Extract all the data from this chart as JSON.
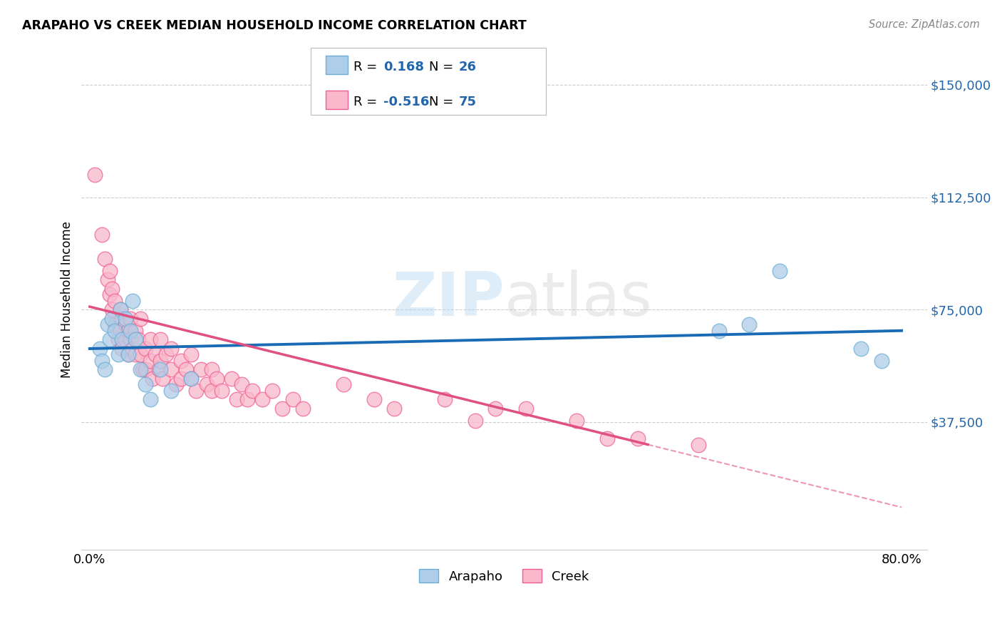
{
  "title": "ARAPAHO VS CREEK MEDIAN HOUSEHOLD INCOME CORRELATION CHART",
  "source": "Source: ZipAtlas.com",
  "ylabel": "Median Household Income",
  "xlim": [
    0.0,
    0.8
  ],
  "ylim": [
    0,
    160000
  ],
  "arapaho_line_color": "#1a6bb5",
  "creek_line_color": "#e05080",
  "arapaho_scatter_face": "#aecde8",
  "arapaho_scatter_edge": "#6baed6",
  "creek_scatter_face": "#f9b8cc",
  "creek_scatter_edge": "#f06090",
  "watermark_color": "#cce4f5",
  "ytick_vals": [
    37500,
    75000,
    112500,
    150000
  ],
  "ytick_labels": [
    "$37,500",
    "$75,000",
    "$112,500",
    "$150,000"
  ],
  "arapaho_points": [
    [
      0.01,
      62000
    ],
    [
      0.012,
      58000
    ],
    [
      0.015,
      55000
    ],
    [
      0.018,
      70000
    ],
    [
      0.02,
      65000
    ],
    [
      0.022,
      72000
    ],
    [
      0.025,
      68000
    ],
    [
      0.028,
      60000
    ],
    [
      0.03,
      75000
    ],
    [
      0.032,
      65000
    ],
    [
      0.035,
      72000
    ],
    [
      0.038,
      60000
    ],
    [
      0.04,
      68000
    ],
    [
      0.042,
      78000
    ],
    [
      0.045,
      65000
    ],
    [
      0.05,
      55000
    ],
    [
      0.055,
      50000
    ],
    [
      0.06,
      45000
    ],
    [
      0.07,
      55000
    ],
    [
      0.08,
      48000
    ],
    [
      0.1,
      52000
    ],
    [
      0.62,
      68000
    ],
    [
      0.65,
      70000
    ],
    [
      0.68,
      88000
    ],
    [
      0.76,
      62000
    ],
    [
      0.78,
      58000
    ]
  ],
  "creek_points": [
    [
      0.005,
      120000
    ],
    [
      0.012,
      100000
    ],
    [
      0.015,
      92000
    ],
    [
      0.018,
      85000
    ],
    [
      0.02,
      88000
    ],
    [
      0.02,
      80000
    ],
    [
      0.022,
      82000
    ],
    [
      0.022,
      75000
    ],
    [
      0.025,
      78000
    ],
    [
      0.025,
      70000
    ],
    [
      0.028,
      65000
    ],
    [
      0.03,
      75000
    ],
    [
      0.03,
      68000
    ],
    [
      0.032,
      72000
    ],
    [
      0.032,
      62000
    ],
    [
      0.035,
      70000
    ],
    [
      0.035,
      65000
    ],
    [
      0.038,
      68000
    ],
    [
      0.038,
      60000
    ],
    [
      0.04,
      72000
    ],
    [
      0.04,
      65000
    ],
    [
      0.042,
      62000
    ],
    [
      0.045,
      68000
    ],
    [
      0.045,
      60000
    ],
    [
      0.048,
      65000
    ],
    [
      0.05,
      72000
    ],
    [
      0.05,
      60000
    ],
    [
      0.052,
      55000
    ],
    [
      0.055,
      62000
    ],
    [
      0.055,
      55000
    ],
    [
      0.06,
      65000
    ],
    [
      0.06,
      58000
    ],
    [
      0.062,
      52000
    ],
    [
      0.065,
      60000
    ],
    [
      0.068,
      55000
    ],
    [
      0.07,
      65000
    ],
    [
      0.07,
      58000
    ],
    [
      0.072,
      52000
    ],
    [
      0.075,
      60000
    ],
    [
      0.08,
      62000
    ],
    [
      0.08,
      55000
    ],
    [
      0.085,
      50000
    ],
    [
      0.09,
      58000
    ],
    [
      0.09,
      52000
    ],
    [
      0.095,
      55000
    ],
    [
      0.1,
      60000
    ],
    [
      0.1,
      52000
    ],
    [
      0.105,
      48000
    ],
    [
      0.11,
      55000
    ],
    [
      0.115,
      50000
    ],
    [
      0.12,
      55000
    ],
    [
      0.12,
      48000
    ],
    [
      0.125,
      52000
    ],
    [
      0.13,
      48000
    ],
    [
      0.14,
      52000
    ],
    [
      0.145,
      45000
    ],
    [
      0.15,
      50000
    ],
    [
      0.155,
      45000
    ],
    [
      0.16,
      48000
    ],
    [
      0.17,
      45000
    ],
    [
      0.18,
      48000
    ],
    [
      0.19,
      42000
    ],
    [
      0.2,
      45000
    ],
    [
      0.21,
      42000
    ],
    [
      0.25,
      50000
    ],
    [
      0.28,
      45000
    ],
    [
      0.3,
      42000
    ],
    [
      0.35,
      45000
    ],
    [
      0.38,
      38000
    ],
    [
      0.4,
      42000
    ],
    [
      0.43,
      42000
    ],
    [
      0.48,
      38000
    ],
    [
      0.51,
      32000
    ],
    [
      0.54,
      32000
    ],
    [
      0.6,
      30000
    ]
  ]
}
